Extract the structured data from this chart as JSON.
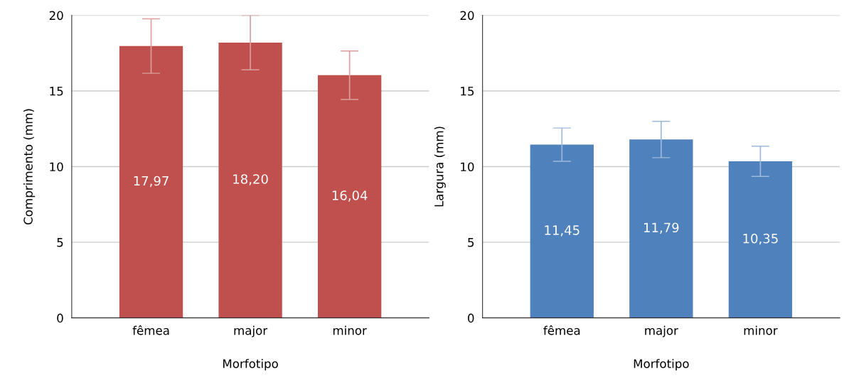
{
  "chart_data": [
    {
      "type": "bar",
      "xlabel": "Morfotipo",
      "ylabel": "Comprimento (mm)",
      "categories": [
        "fêmea",
        "major",
        "minor"
      ],
      "values": [
        17.97,
        18.2,
        16.04
      ],
      "errors": [
        1.8,
        1.8,
        1.6
      ],
      "value_labels": [
        "17,97",
        "18,20",
        "16,04"
      ],
      "color": "#c0504d",
      "ylim": [
        0,
        20
      ],
      "yticks": [
        0,
        5,
        10,
        15,
        20
      ],
      "grid": "y"
    },
    {
      "type": "bar",
      "xlabel": "Morfotipo",
      "ylabel": "Largura (mm)",
      "categories": [
        "fêmea",
        "major",
        "minor"
      ],
      "values": [
        11.45,
        11.79,
        10.35
      ],
      "errors": [
        1.1,
        1.2,
        1.0
      ],
      "value_labels": [
        "11,45",
        "11,79",
        "10,35"
      ],
      "color": "#4f81bd",
      "ylim": [
        0,
        20
      ],
      "yticks": [
        0,
        5,
        10,
        15,
        20
      ],
      "grid": "y"
    }
  ]
}
